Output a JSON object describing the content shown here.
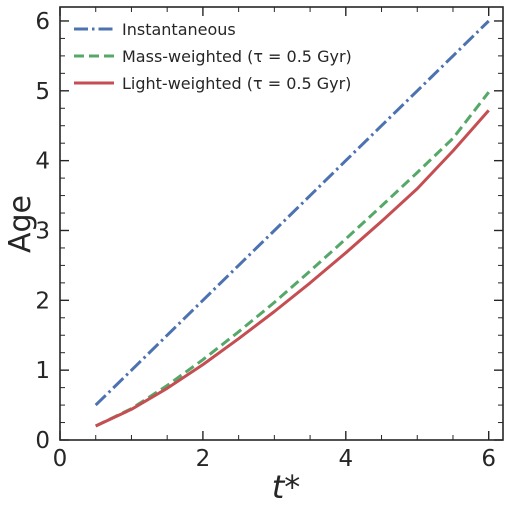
{
  "chart_data": {
    "type": "line",
    "xlabel": "t*",
    "ylabel": "Age",
    "xlim": [
      0,
      6.2
    ],
    "ylim": [
      0,
      6.2
    ],
    "xticks": [
      0,
      2,
      4,
      6
    ],
    "yticks": [
      0,
      1,
      2,
      3,
      4,
      5,
      6
    ],
    "legend_position": "top-left",
    "grid": false,
    "series": [
      {
        "name": "Instantaneous",
        "color": "#4c72b0",
        "style": "dashdot",
        "x": [
          0.5,
          1.0,
          1.5,
          2.0,
          2.5,
          3.0,
          3.5,
          4.0,
          4.5,
          5.0,
          5.5,
          6.0
        ],
        "y": [
          0.5,
          1.0,
          1.5,
          2.0,
          2.5,
          3.0,
          3.5,
          4.0,
          4.5,
          5.0,
          5.5,
          6.0
        ]
      },
      {
        "name": "Mass-weighted (τ = 0.5 Gyr)",
        "color": "#55a868",
        "style": "dashed",
        "x": [
          0.5,
          1.0,
          1.5,
          2.0,
          2.5,
          3.0,
          3.5,
          4.0,
          4.5,
          5.0,
          5.5,
          6.0
        ],
        "y": [
          0.2,
          0.45,
          0.78,
          1.15,
          1.55,
          1.97,
          2.42,
          2.88,
          3.35,
          3.83,
          4.32,
          4.98
        ]
      },
      {
        "name": "Light-weighted (τ = 0.5 Gyr)",
        "color": "#c44e52",
        "style": "solid",
        "x": [
          0.5,
          1.0,
          1.5,
          2.0,
          2.5,
          3.0,
          3.5,
          4.0,
          4.5,
          5.0,
          5.5,
          6.0
        ],
        "y": [
          0.2,
          0.44,
          0.74,
          1.08,
          1.45,
          1.84,
          2.25,
          2.68,
          3.13,
          3.6,
          4.14,
          4.72
        ]
      }
    ]
  }
}
